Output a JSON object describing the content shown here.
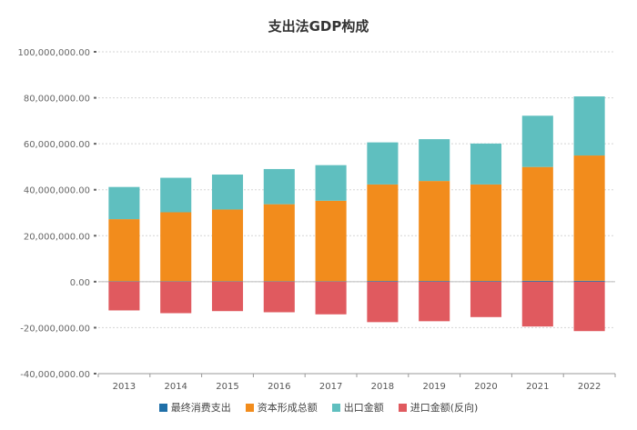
{
  "chart_data": {
    "type": "bar",
    "stacked": true,
    "title": "支出法GDP构成",
    "xlabel": "",
    "ylabel": "",
    "ylim": [
      -40000000,
      100000000
    ],
    "yticks": [
      100000000,
      80000000,
      60000000,
      40000000,
      20000000,
      0,
      -20000000,
      -40000000
    ],
    "ytick_labels": [
      "100,000,000.00",
      "80,000,000.00",
      "60,000,000.00",
      "40,000,000.00",
      "20,000,000.00",
      "0.00",
      "-20,000,000.00",
      "-40,000,000.00"
    ],
    "categories": [
      "2013",
      "2014",
      "2015",
      "2016",
      "2017",
      "2018",
      "2019",
      "2020",
      "2021",
      "2022"
    ],
    "grid": true,
    "legend_position": "bottom",
    "series": [
      {
        "name": "最终消费支出",
        "color": "#1f6fa8",
        "values": [
          200000,
          200000,
          200000,
          200000,
          200000,
          300000,
          300000,
          300000,
          400000,
          400000
        ]
      },
      {
        "name": "资本形成总额",
        "color": "#f28c1c",
        "values": [
          27000000,
          30000000,
          31200000,
          33500000,
          35000000,
          42000000,
          43500000,
          42000000,
          49500000,
          54500000
        ]
      },
      {
        "name": "出口金额",
        "color": "#5fbfbf",
        "values": [
          14000000,
          15000000,
          15200000,
          15300000,
          15500000,
          18300000,
          18200000,
          17800000,
          22300000,
          25700000
        ]
      },
      {
        "name": "进口金额(反向)",
        "color": "#e05a5f",
        "values": [
          -12500000,
          -13700000,
          -12800000,
          -13300000,
          -14200000,
          -17600000,
          -17200000,
          -15400000,
          -19500000,
          -21500000
        ]
      }
    ]
  }
}
